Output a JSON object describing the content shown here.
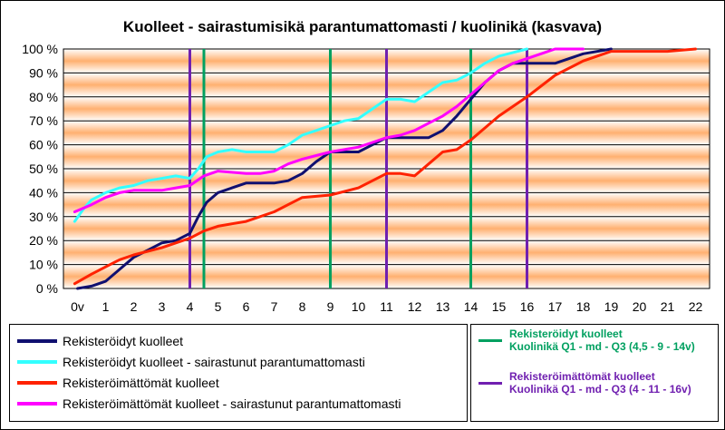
{
  "chart_data": {
    "type": "line",
    "title": "Kuolleet - sairastumisikä parantumattomasti / kuolinikä (kasvava)",
    "xlabel": "",
    "ylabel": "",
    "xlim": [
      -0.5,
      22.5
    ],
    "ylim": [
      0,
      100
    ],
    "x_ticks": [
      "0v",
      "1",
      "2",
      "3",
      "4",
      "5",
      "6",
      "7",
      "8",
      "9",
      "10",
      "11",
      "12",
      "13",
      "14",
      "15",
      "16",
      "17",
      "18",
      "19",
      "20",
      "21",
      "22"
    ],
    "y_ticks": [
      "0 %",
      "10 %",
      "20 %",
      "30 %",
      "40 %",
      "50 %",
      "60 %",
      "70 %",
      "80 %",
      "90 %",
      "100 %"
    ],
    "series": [
      {
        "name": "Rekisteröidyt kuolleet",
        "color": "#101070",
        "points": [
          [
            0,
            0
          ],
          [
            0.5,
            1
          ],
          [
            1,
            3
          ],
          [
            1.5,
            8
          ],
          [
            2,
            13
          ],
          [
            2.5,
            16
          ],
          [
            3,
            19
          ],
          [
            3.5,
            20
          ],
          [
            4,
            23
          ],
          [
            4.3,
            30
          ],
          [
            4.6,
            36
          ],
          [
            5,
            40
          ],
          [
            5.5,
            42
          ],
          [
            6,
            44
          ],
          [
            7,
            44
          ],
          [
            7.5,
            45
          ],
          [
            8,
            48
          ],
          [
            8.5,
            53
          ],
          [
            9,
            57
          ],
          [
            10,
            57
          ],
          [
            10.5,
            60
          ],
          [
            11,
            63
          ],
          [
            12,
            63
          ],
          [
            12.5,
            63
          ],
          [
            13,
            66
          ],
          [
            13.5,
            72
          ],
          [
            14,
            79
          ],
          [
            14.5,
            86
          ],
          [
            15,
            91
          ],
          [
            15.5,
            94
          ],
          [
            16,
            94
          ],
          [
            17,
            94
          ],
          [
            17.5,
            96
          ],
          [
            18,
            98
          ],
          [
            19,
            100
          ]
        ]
      },
      {
        "name": "Rekisteröidyt kuolleet - sairastunut parantumattomasti",
        "color": "#33FFFF",
        "points": [
          [
            -0.1,
            28
          ],
          [
            0.2,
            33
          ],
          [
            0.5,
            37
          ],
          [
            1,
            40
          ],
          [
            1.5,
            42
          ],
          [
            2,
            43
          ],
          [
            2.5,
            45
          ],
          [
            3,
            46
          ],
          [
            3.5,
            47
          ],
          [
            4,
            46
          ],
          [
            4.3,
            50
          ],
          [
            4.6,
            55
          ],
          [
            5,
            57
          ],
          [
            5.5,
            58
          ],
          [
            6,
            57
          ],
          [
            7,
            57
          ],
          [
            7.5,
            60
          ],
          [
            8,
            64
          ],
          [
            8.5,
            66
          ],
          [
            9,
            68
          ],
          [
            9.5,
            70
          ],
          [
            10,
            71
          ],
          [
            10.5,
            75
          ],
          [
            11,
            79
          ],
          [
            11.5,
            79
          ],
          [
            12,
            78
          ],
          [
            12.5,
            82
          ],
          [
            13,
            86
          ],
          [
            13.5,
            87
          ],
          [
            14,
            90
          ],
          [
            14.5,
            94
          ],
          [
            15,
            97
          ],
          [
            16,
            100
          ]
        ]
      },
      {
        "name": "Rekisteröimättömät kuolleet",
        "color": "#FF2200",
        "points": [
          [
            -0.1,
            2
          ],
          [
            0.5,
            6
          ],
          [
            1,
            9
          ],
          [
            1.5,
            12
          ],
          [
            2,
            14
          ],
          [
            3,
            17
          ],
          [
            3.5,
            19
          ],
          [
            4,
            21
          ],
          [
            4.5,
            24
          ],
          [
            5,
            26
          ],
          [
            5.5,
            27
          ],
          [
            6,
            28
          ],
          [
            7,
            32
          ],
          [
            7.5,
            35
          ],
          [
            8,
            38
          ],
          [
            9,
            39
          ],
          [
            10,
            42
          ],
          [
            10.5,
            45
          ],
          [
            11,
            48
          ],
          [
            11.5,
            48
          ],
          [
            12,
            47
          ],
          [
            12.5,
            52
          ],
          [
            13,
            57
          ],
          [
            13.5,
            58
          ],
          [
            14,
            62
          ],
          [
            14.5,
            67
          ],
          [
            15,
            72
          ],
          [
            16,
            80
          ],
          [
            17,
            89
          ],
          [
            18,
            95
          ],
          [
            19,
            99
          ],
          [
            20,
            99
          ],
          [
            21,
            99
          ],
          [
            22,
            100
          ]
        ]
      },
      {
        "name": "Rekisteröimättömät kuolleet - sairastunut parantumattomasti",
        "color": "#FF00FF",
        "points": [
          [
            -0.1,
            32
          ],
          [
            0.5,
            35
          ],
          [
            1,
            38
          ],
          [
            1.5,
            40
          ],
          [
            2,
            41
          ],
          [
            3,
            41
          ],
          [
            3.5,
            42
          ],
          [
            4,
            43
          ],
          [
            4.5,
            47
          ],
          [
            5,
            49
          ],
          [
            6,
            48
          ],
          [
            6.5,
            48
          ],
          [
            7,
            49
          ],
          [
            7.5,
            52
          ],
          [
            8,
            54
          ],
          [
            9,
            57
          ],
          [
            10,
            59
          ],
          [
            10.5,
            61
          ],
          [
            11,
            63
          ],
          [
            11.5,
            64
          ],
          [
            12,
            66
          ],
          [
            12.5,
            69
          ],
          [
            13,
            72
          ],
          [
            13.5,
            76
          ],
          [
            14,
            81
          ],
          [
            14.5,
            86
          ],
          [
            15,
            91
          ],
          [
            15.5,
            94
          ],
          [
            16,
            96
          ],
          [
            16.5,
            98
          ],
          [
            17,
            100
          ],
          [
            18,
            100
          ]
        ]
      }
    ],
    "quartile_lines": [
      {
        "name": "Rekisteröidyt kuolleet",
        "detail": "Kuolinikä Q1 - md - Q3 (4,5 - 9 - 14v)",
        "color": "#00A060",
        "values": [
          4.5,
          9,
          14
        ]
      },
      {
        "name": "Rekisteröimättömät kuolleet",
        "detail": "Kuolinikä Q1 - md - Q3 (4 - 11 - 16v)",
        "color": "#7020B0",
        "values": [
          4,
          11,
          16
        ]
      }
    ],
    "grid": true,
    "legend_position": "bottom"
  },
  "legend": {
    "s0": "Rekisteröidyt kuolleet",
    "s1": "Rekisteröidyt kuolleet - sairastunut parantumattomasti",
    "s2": "Rekisteröimättömät kuolleet",
    "s3": "Rekisteröimättömät kuolleet - sairastunut parantumattomasti",
    "q0_title": "Rekisteröidyt kuolleet",
    "q0_detail": "Kuolinikä Q1 - md - Q3 (4,5 - 9 - 14v)",
    "q1_title": "Rekisteröimättömät kuolleet",
    "q1_detail": "Kuolinikä Q1 - md - Q3 (4 - 11 - 16v)"
  },
  "colors": {
    "band_edge": "#FFFFFF",
    "band_center": "#FFB070"
  }
}
